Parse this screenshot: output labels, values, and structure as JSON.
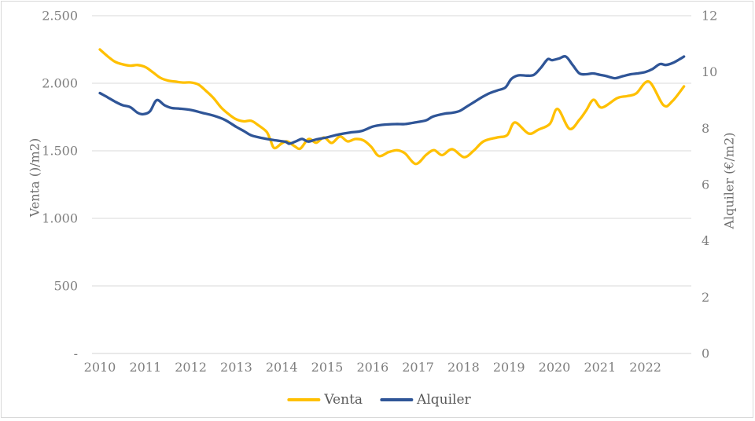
{
  "chart_data": {
    "type": "line",
    "title": "",
    "grid": true,
    "x_axis": {
      "tick_labels": [
        "2010",
        "2011",
        "2012",
        "2013",
        "2014",
        "2015",
        "2016",
        "2017",
        "2018",
        "2019",
        "2020",
        "2021",
        "2022"
      ],
      "tick_years": [
        2010,
        2011,
        2012,
        2013,
        2014,
        2015,
        2016,
        2017,
        2018,
        2019,
        2020,
        2021,
        2022
      ]
    },
    "left_axis": {
      "label": "Venta ()/m2)",
      "tick_labels": [
        "-",
        "500",
        "1.000",
        "1.500",
        "2.000",
        "2.500"
      ],
      "tick_values": [
        0,
        500,
        1000,
        1500,
        2000,
        2500
      ],
      "range": [
        0,
        2500
      ]
    },
    "right_axis": {
      "label": "Alquiler (€/m2)",
      "tick_labels": [
        "0",
        "2",
        "4",
        "6",
        "8",
        "10",
        "12"
      ],
      "tick_values": [
        0,
        2,
        4,
        6,
        8,
        10,
        12
      ],
      "range": [
        0,
        12
      ]
    },
    "legend": {
      "position": "bottom",
      "entries": [
        {
          "label": "Venta",
          "color": "#FFC000"
        },
        {
          "label": "Alquiler",
          "color": "#2F5597"
        }
      ]
    },
    "series": [
      {
        "name": "Venta",
        "axis": "left",
        "color": "#FFC000",
        "x": [
          2010.0,
          2010.17,
          2010.33,
          2010.5,
          2010.67,
          2010.83,
          2011.0,
          2011.17,
          2011.33,
          2011.5,
          2011.67,
          2011.83,
          2012.0,
          2012.17,
          2012.33,
          2012.5,
          2012.67,
          2012.83,
          2013.0,
          2013.17,
          2013.33,
          2013.5,
          2013.67,
          2013.75,
          2013.84,
          2014.0,
          2014.12,
          2014.28,
          2014.41,
          2014.59,
          2014.76,
          2014.93,
          2015.1,
          2015.28,
          2015.45,
          2015.62,
          2015.8,
          2015.97,
          2016.14,
          2016.35,
          2016.54,
          2016.71,
          2016.95,
          2017.18,
          2017.35,
          2017.53,
          2017.75,
          2018.01,
          2018.22,
          2018.44,
          2018.74,
          2018.96,
          2019.13,
          2019.43,
          2019.65,
          2019.9,
          2020.07,
          2020.33,
          2020.55,
          2020.7,
          2020.86,
          2021.04,
          2021.38,
          2021.6,
          2021.8,
          2022.08,
          2022.4,
          2022.6,
          2022.85
        ],
        "values": [
          2250,
          2200,
          2160,
          2140,
          2130,
          2135,
          2120,
          2080,
          2040,
          2020,
          2012,
          2005,
          2006,
          1990,
          1945,
          1890,
          1820,
          1772,
          1733,
          1718,
          1722,
          1686,
          1640,
          1580,
          1520,
          1555,
          1570,
          1535,
          1517,
          1587,
          1560,
          1599,
          1558,
          1606,
          1570,
          1587,
          1577,
          1529,
          1461,
          1490,
          1504,
          1482,
          1403,
          1471,
          1505,
          1468,
          1512,
          1453,
          1500,
          1570,
          1599,
          1616,
          1710,
          1628,
          1657,
          1700,
          1810,
          1663,
          1730,
          1800,
          1878,
          1820,
          1890,
          1905,
          1925,
          2012,
          1837,
          1870,
          1977
        ]
      },
      {
        "name": "Alquiler",
        "axis": "right",
        "color": "#2F5597",
        "x": [
          2010.0,
          2010.17,
          2010.33,
          2010.5,
          2010.67,
          2010.83,
          2010.95,
          2011.1,
          2011.25,
          2011.42,
          2011.58,
          2011.75,
          2012.0,
          2012.25,
          2012.5,
          2012.75,
          2013.0,
          2013.17,
          2013.33,
          2013.58,
          2013.83,
          2014.08,
          2014.17,
          2014.33,
          2014.45,
          2014.58,
          2014.75,
          2015.0,
          2015.25,
          2015.5,
          2015.75,
          2016.0,
          2016.2,
          2016.5,
          2016.7,
          2016.9,
          2017.17,
          2017.33,
          2017.58,
          2017.75,
          2017.92,
          2018.08,
          2018.25,
          2018.42,
          2018.58,
          2018.75,
          2018.92,
          2019.05,
          2019.2,
          2019.4,
          2019.55,
          2019.7,
          2019.85,
          2019.95,
          2020.1,
          2020.25,
          2020.4,
          2020.55,
          2020.7,
          2020.85,
          2021.0,
          2021.15,
          2021.33,
          2021.5,
          2021.68,
          2021.83,
          2022.0,
          2022.15,
          2022.32,
          2022.45,
          2022.6,
          2022.75,
          2022.85
        ],
        "values": [
          9.25,
          9.1,
          8.95,
          8.82,
          8.75,
          8.55,
          8.5,
          8.6,
          9.0,
          8.82,
          8.72,
          8.7,
          8.65,
          8.55,
          8.45,
          8.3,
          8.05,
          7.9,
          7.75,
          7.65,
          7.58,
          7.52,
          7.45,
          7.55,
          7.62,
          7.53,
          7.6,
          7.68,
          7.78,
          7.85,
          7.9,
          8.06,
          8.12,
          8.15,
          8.15,
          8.2,
          8.28,
          8.42,
          8.52,
          8.55,
          8.62,
          8.78,
          8.95,
          9.12,
          9.25,
          9.35,
          9.45,
          9.75,
          9.88,
          9.87,
          9.9,
          10.15,
          10.45,
          10.42,
          10.48,
          10.55,
          10.25,
          9.95,
          9.92,
          9.95,
          9.9,
          9.85,
          9.78,
          9.85,
          9.92,
          9.95,
          10.0,
          10.1,
          10.28,
          10.25,
          10.32,
          10.45,
          10.55
        ]
      }
    ],
    "colors": {
      "gridline": "#d9d9d9",
      "axis_line": "#d3d3d3",
      "tick_text": "#7f7f7f",
      "axis_title_text": "#6e6e6e",
      "legend_text": "#595959",
      "background": "#ffffff",
      "border": "#d9d9d9"
    }
  }
}
